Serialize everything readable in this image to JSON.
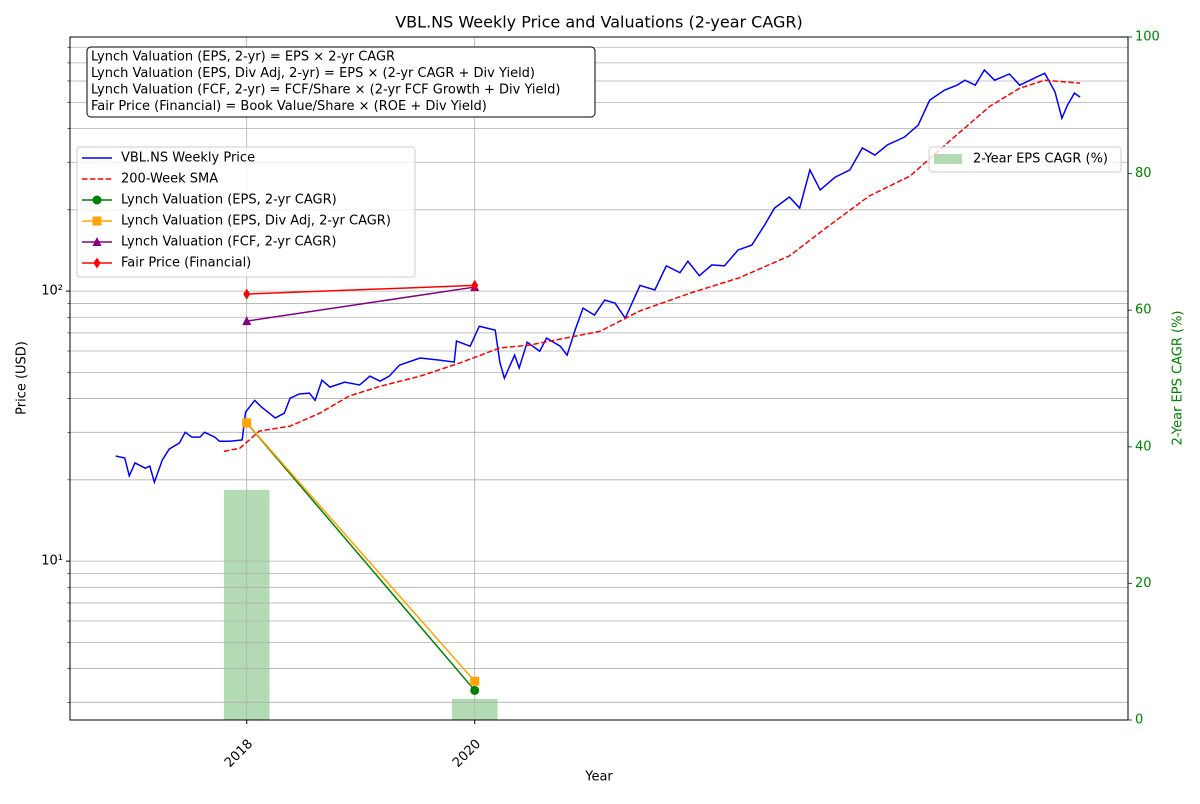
{
  "chart_data": {
    "type": "line",
    "title": "VBL.NS Weekly Price and Valuations (2-year CAGR)",
    "xlabel": "Year",
    "ylabel": "Price (USD)",
    "y2label": "2-Year EPS CAGR (%)",
    "xlim": [
      2016.45,
      2025.73
    ],
    "xticks": [
      2018,
      2020
    ],
    "ylim": [
      2.58,
      873
    ],
    "yscale": "log",
    "yticks": [
      {
        "value": 10,
        "label": "10¹"
      },
      {
        "value": 100,
        "label": "10²"
      }
    ],
    "yticks_minor": [
      3,
      4,
      5,
      6,
      7,
      8,
      9,
      20,
      30,
      40,
      50,
      60,
      70,
      80,
      90,
      200,
      300,
      400,
      500,
      600,
      700,
      800
    ],
    "y2lim": [
      0,
      100
    ],
    "y2ticks": [
      0,
      20,
      40,
      60,
      80,
      100
    ],
    "y2color": "#008000",
    "grid": true,
    "legend": "upper left",
    "annotation": [
      "Lynch Valuation (EPS, 2-yr) = EPS × 2-yr CAGR",
      "Lynch Valuation (EPS, Div Adj, 2-yr) = EPS × (2-yr CAGR + Div Yield)",
      "Lynch Valuation (FCF, 2-yr) = FCF/Share × (2-yr FCF Growth + Div Yield)",
      "Fair Price (Financial) = Book Value/Share × (ROE + Div Yield)"
    ],
    "series": [
      {
        "name": "VBL.NS Weekly Price",
        "color": "#0000ff",
        "linestyle": "solid",
        "marker": null,
        "x": [
          2016.85,
          2016.93,
          2016.97,
          2017.02,
          2017.11,
          2017.15,
          2017.19,
          2017.26,
          2017.32,
          2017.41,
          2017.46,
          2017.52,
          2017.59,
          2017.63,
          2017.72,
          2017.76,
          2017.85,
          2017.96,
          2017.99,
          2018.07,
          2018.13,
          2018.25,
          2018.33,
          2018.38,
          2018.46,
          2018.55,
          2018.6,
          2018.66,
          2018.73,
          2018.86,
          2018.99,
          2019.08,
          2019.17,
          2019.25,
          2019.34,
          2019.52,
          2019.69,
          2019.82,
          2019.84,
          2019.96,
          2020.04,
          2020.18,
          2020.22,
          2020.26,
          2020.35,
          2020.39,
          2020.46,
          2020.57,
          2020.63,
          2020.75,
          2020.81,
          2020.88,
          2020.95,
          2021.05,
          2021.14,
          2021.23,
          2021.32,
          2021.45,
          2021.58,
          2021.68,
          2021.8,
          2021.87,
          2021.97,
          2022.08,
          2022.19,
          2022.31,
          2022.43,
          2022.54,
          2022.63,
          2022.76,
          2022.85,
          2022.94,
          2023.03,
          2023.16,
          2023.29,
          2023.4,
          2023.51,
          2023.62,
          2023.77,
          2023.89,
          2023.99,
          2024.12,
          2024.23,
          2024.3,
          2024.39,
          2024.47,
          2024.56,
          2024.69,
          2024.78,
          2024.91,
          2025.0,
          2025.09,
          2025.15,
          2025.2,
          2025.26,
          2025.31
        ],
        "values": [
          24.5,
          24.1,
          20.7,
          23.1,
          22.1,
          22.5,
          19.6,
          23.7,
          26.0,
          27.4,
          30.0,
          28.8,
          28.8,
          30.0,
          28.8,
          27.8,
          27.8,
          28.1,
          35.6,
          39.4,
          37.2,
          33.9,
          35.3,
          40.1,
          41.6,
          41.9,
          39.4,
          46.8,
          44.1,
          46.0,
          44.9,
          48.4,
          46.4,
          48.4,
          53.2,
          56.5,
          55.5,
          54.6,
          65.3,
          62.5,
          74.1,
          71.7,
          54.6,
          47.6,
          57.9,
          51.9,
          64.7,
          59.9,
          67.0,
          62.5,
          57.9,
          71.7,
          86.5,
          81.5,
          92.6,
          90.3,
          79.4,
          105,
          101,
          124,
          117,
          129,
          114,
          125,
          124,
          142,
          148,
          175,
          203,
          223,
          203,
          281,
          237,
          264,
          281,
          339,
          319,
          348,
          372,
          412,
          509,
          555,
          579,
          604,
          579,
          659,
          604,
          637,
          579,
          615,
          641,
          546,
          437,
          489,
          541,
          523
        ]
      },
      {
        "name": "200-Week SMA",
        "color": "#ff0000",
        "linestyle": "dashed",
        "marker": null,
        "x": [
          2017.8,
          2017.94,
          2018.11,
          2018.38,
          2018.64,
          2018.9,
          2019.17,
          2019.52,
          2019.87,
          2020.22,
          2020.48,
          2020.75,
          2021.1,
          2021.45,
          2021.89,
          2022.32,
          2022.76,
          2023.11,
          2023.46,
          2023.82,
          2024.17,
          2024.52,
          2024.78,
          2025.0,
          2025.31
        ],
        "values": [
          25.5,
          26.2,
          30.3,
          31.6,
          35.3,
          40.9,
          44.4,
          48.4,
          54.2,
          61.6,
          63.1,
          66.4,
          71.0,
          84.5,
          98.3,
          112,
          135,
          175,
          225,
          267,
          361,
          484,
          564,
          604,
          589
        ]
      },
      {
        "name": "Lynch Valuation (EPS, 2-yr CAGR)",
        "color": "#008000",
        "linestyle": "solid",
        "marker": "circle",
        "x": [
          2018,
          2020
        ],
        "values": [
          32.5,
          3.32
        ]
      },
      {
        "name": "Lynch Valuation (EPS, Div Adj, 2-yr CAGR)",
        "color": "#ffa500",
        "linestyle": "solid",
        "marker": "square",
        "x": [
          2018,
          2020
        ],
        "values": [
          32.5,
          3.59
        ]
      },
      {
        "name": "Lynch Valuation (FCF, 2-yr CAGR)",
        "color": "#800080",
        "linestyle": "solid",
        "marker": "triangle",
        "x": [
          2018,
          2020
        ],
        "values": [
          77.4,
          103.5
        ]
      },
      {
        "name": "Fair Price (Financial)",
        "color": "#ff0000",
        "linestyle": "solid",
        "marker": "diamond",
        "x": [
          2018,
          2020
        ],
        "values": [
          97.5,
          105
        ]
      }
    ],
    "bar_series": {
      "name": "2-Year EPS CAGR (%)",
      "color": "#b3dbb3",
      "axis": "y2",
      "bar_width": 0.4,
      "x": [
        2018,
        2020
      ],
      "values": [
        33.7,
        3.1
      ]
    },
    "bar_legend": "upper right"
  }
}
